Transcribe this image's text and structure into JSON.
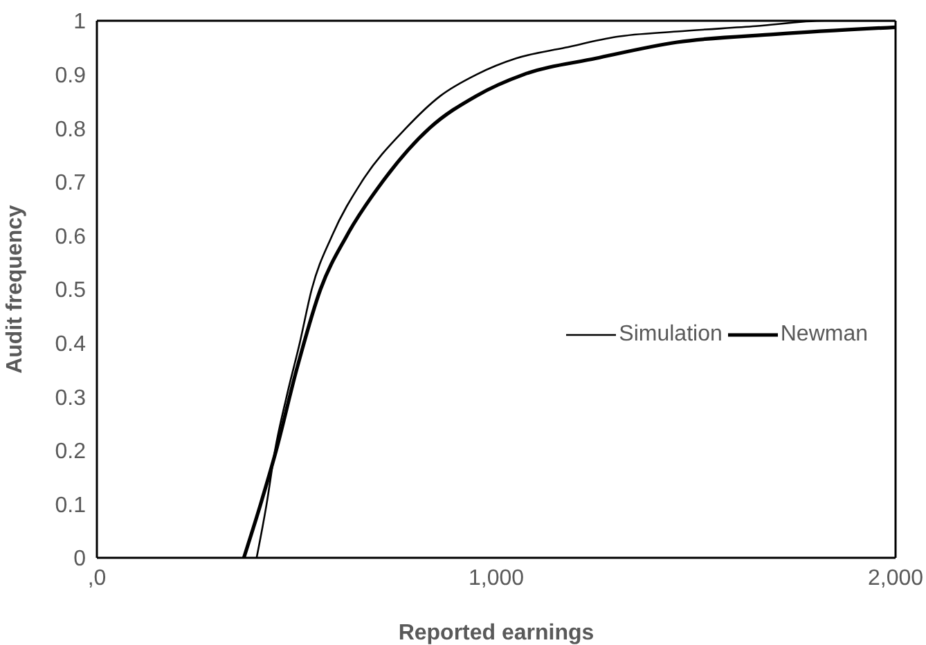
{
  "chart_data": {
    "type": "line",
    "xlabel": "Reported earnings",
    "ylabel": "Audit frequency",
    "xlim": [
      0,
      2000
    ],
    "xticks": [
      {
        "value": 0,
        "label": ",0"
      },
      {
        "value": 1000,
        "label": "1,000"
      },
      {
        "value": 2000,
        "label": "2,000"
      }
    ],
    "ylim": [
      0,
      1
    ],
    "yticks": [
      0,
      0.1,
      0.2,
      0.3,
      0.4,
      0.5,
      0.6,
      0.7,
      0.8,
      0.9,
      1
    ],
    "legend": "right",
    "marker": "none",
    "line_style": "solid",
    "series": [
      {
        "name": "Simulation",
        "color": "#000000",
        "x": [
          400,
          425,
          446,
          475,
          508,
          538,
          589,
          663,
          774,
          860,
          951,
          1050,
          1173,
          1300,
          1453,
          1650,
          1823,
          2000
        ],
        "values": [
          0,
          0.1,
          0.2,
          0.3,
          0.4,
          0.5,
          0.6,
          0.7,
          0.8,
          0.86,
          0.9,
          0.93,
          0.95,
          0.97,
          0.98,
          0.99,
          1,
          1
        ]
      },
      {
        "name": "Newman",
        "color": "#000000",
        "x": [
          368,
          410,
          449,
          500,
          560,
          626,
          715,
          833,
          950,
          1069,
          1250,
          1453,
          1700,
          2000
        ],
        "values": [
          0,
          0.1,
          0.2,
          0.35,
          0.5,
          0.6,
          0.7,
          0.8,
          0.86,
          0.9,
          0.93,
          0.96,
          0.975,
          0.988
        ]
      }
    ]
  }
}
